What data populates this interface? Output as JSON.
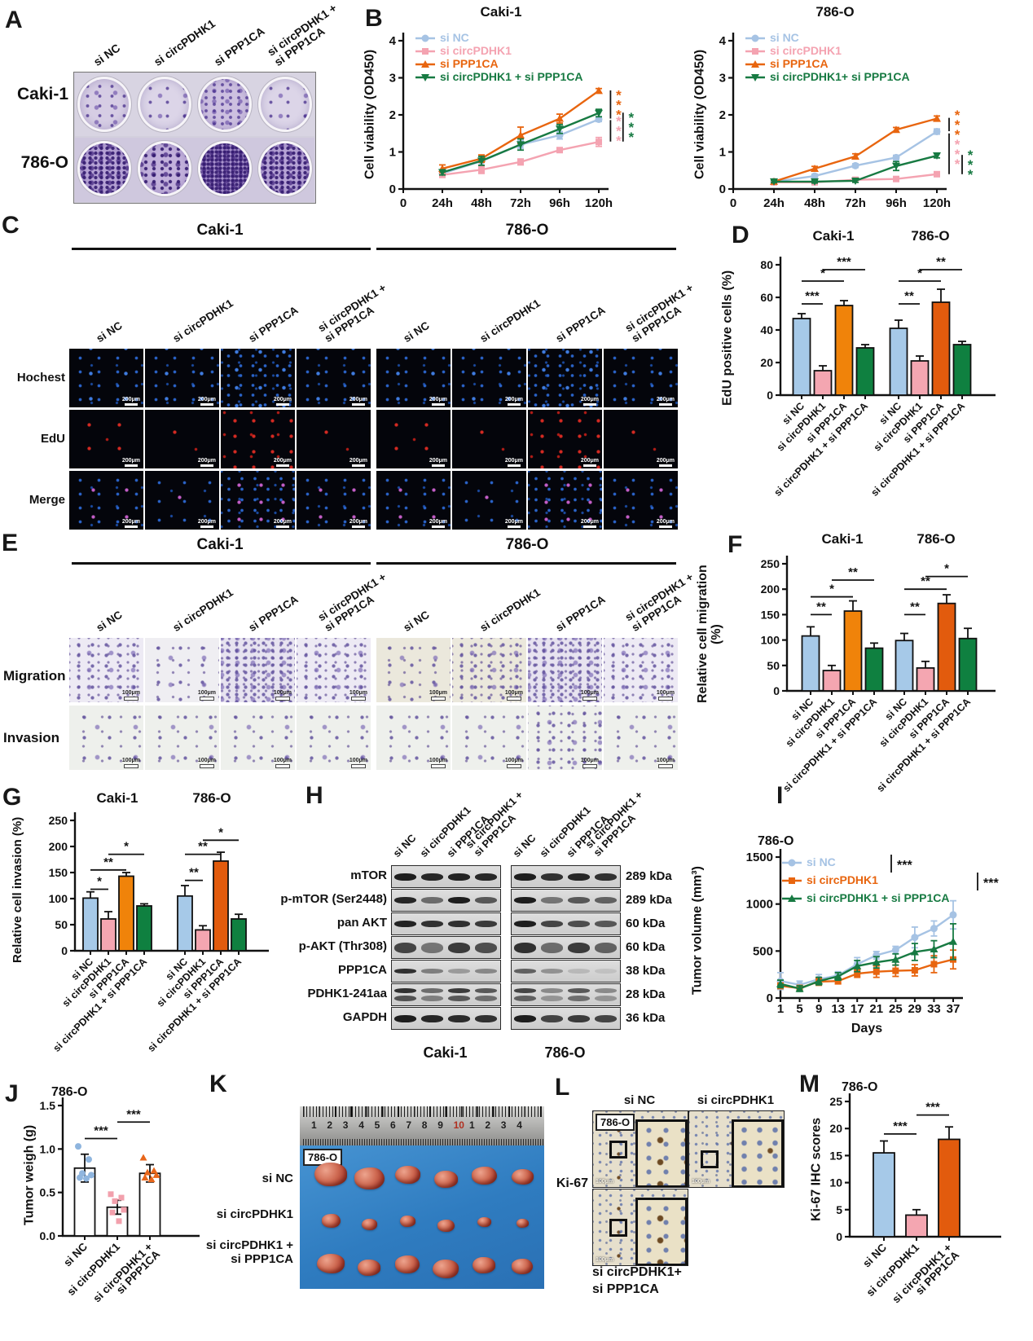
{
  "letters": {
    "A": "A",
    "B": "B",
    "C": "C",
    "D": "D",
    "E": "E",
    "F": "F",
    "G": "G",
    "H": "H",
    "I": "I",
    "J": "J",
    "K": "K",
    "L": "L",
    "M": "M"
  },
  "panelA": {
    "col_labels": [
      "si NC",
      "si circPDHK1",
      "si PPP1CA",
      "si circPDHK1 +\nsi PPP1CA"
    ],
    "row_labels": [
      "Caki-1",
      "786-O"
    ]
  },
  "panelC": {
    "group_titles": [
      "Caki-1",
      "786-O"
    ],
    "col_labels": [
      "si NC",
      "si circPDHK1",
      "si PPP1CA",
      "si circPDHK1 +\nsi PPP1CA"
    ],
    "row_labels": [
      "Hochest",
      "EdU",
      "Merge"
    ],
    "scale_bar": "200μm"
  },
  "panelE": {
    "group_titles": [
      "Caki-1",
      "786-O"
    ],
    "col_labels": [
      "si NC",
      "si circPDHK1",
      "si PPP1CA",
      "si circPDHK1 +\nsi PPP1CA"
    ],
    "row_labels": [
      "Migration",
      "Invasion"
    ],
    "scale_bar": "100μm"
  },
  "panelH": {
    "lane_labels": [
      "si NC",
      "si circPDHK1",
      "si PPP1CA",
      "si circPDHK1 +\nsi PPP1CA"
    ],
    "rows": [
      {
        "label": "mTOR",
        "kda": "289 kDa",
        "bands": [
          0.95,
          0.9,
          0.92,
          0.9,
          0.95,
          0.85,
          0.9,
          0.85
        ],
        "h": 9
      },
      {
        "label": "p-mTOR (Ser2448)",
        "kda": "289 kDa",
        "bands": [
          0.9,
          0.55,
          0.95,
          0.65,
          0.95,
          0.5,
          0.65,
          0.6
        ],
        "h": 8
      },
      {
        "label": "pan AKT",
        "kda": "60 kDa",
        "bands": [
          0.92,
          0.85,
          0.85,
          0.8,
          0.95,
          0.75,
          0.7,
          0.65
        ],
        "h": 8
      },
      {
        "label": "p-AKT (Thr308)",
        "kda": "60 kDa",
        "bands": [
          0.75,
          0.5,
          0.8,
          0.7,
          0.85,
          0.55,
          0.8,
          0.6
        ],
        "h": 13
      },
      {
        "label": "PPP1CA",
        "kda": "38 kDa",
        "bands": [
          0.85,
          0.45,
          0.3,
          0.4,
          0.6,
          0.35,
          0.15,
          0.1
        ],
        "h": 6
      },
      {
        "label": "PDHK1-241aa",
        "kda": "28 kDa",
        "bands": [
          0.85,
          0.55,
          0.8,
          0.65,
          0.75,
          0.4,
          0.65,
          0.4
        ],
        "h": 7,
        "double": true
      },
      {
        "label": "GAPDH",
        "kda": "36 kDa",
        "bands": [
          0.95,
          0.9,
          0.88,
          0.85,
          0.95,
          0.75,
          0.8,
          0.75
        ],
        "h": 9
      }
    ],
    "bottom_labels": [
      "Caki-1",
      "786-O"
    ]
  },
  "panelK": {
    "corner": "786-O",
    "ruler_numbers": [
      "1",
      "2",
      "3",
      "4",
      "5",
      "6",
      "7",
      "8",
      "9",
      "10",
      "1",
      "2",
      "3",
      "4"
    ],
    "row_labels": [
      "si NC",
      "si circPDHK1",
      "si circPDHK1 +\nsi PPP1CA"
    ]
  },
  "panelL": {
    "corner": "786-O",
    "col_labels": [
      "si NC",
      "si circPDHK1"
    ],
    "marker_label": "Ki-67",
    "bottom_label": "si circPDHK1+\nsi PPP1CA",
    "scale_bar": "100μm"
  },
  "chart_data": [
    {
      "id": "b_caki",
      "type": "line",
      "title": "Caki-1",
      "ylabel": "Cell viability (OD450)",
      "xticklabels": [
        "0",
        "24h",
        "48h",
        "72h",
        "96h",
        "120h"
      ],
      "ylim": [
        0,
        4
      ],
      "yticks": [
        0,
        1,
        2,
        3,
        4
      ],
      "series": [
        {
          "name": "si NC",
          "color": "#A6C3E4",
          "marker": "circle",
          "values": [
            0.42,
            0.75,
            1.2,
            1.45,
            1.88
          ],
          "errors": [
            0.06,
            0.12,
            0.1,
            0.1,
            0.06
          ]
        },
        {
          "name": "si circPDHK1",
          "color": "#F4A3B1",
          "marker": "square",
          "values": [
            0.38,
            0.52,
            0.73,
            1.05,
            1.27
          ],
          "errors": [
            0.05,
            0.1,
            0.08,
            0.05,
            0.12
          ]
        },
        {
          "name": "si PPP1CA",
          "color": "#E8650F",
          "marker": "triangle",
          "values": [
            0.55,
            0.82,
            1.45,
            1.9,
            2.65
          ],
          "errors": [
            0.1,
            0.1,
            0.22,
            0.12,
            0.06
          ]
        },
        {
          "name": "si circPDHK1 + si PPP1CA",
          "color": "#177A42",
          "marker": "triangle-down",
          "values": [
            0.45,
            0.76,
            1.2,
            1.62,
            2.05
          ],
          "errors": [
            0.07,
            0.12,
            0.15,
            0.12,
            0.1
          ]
        }
      ],
      "sig": [
        {
          "xi": 5.3,
          "y1": 1.9,
          "y2": 2.66,
          "text": "***",
          "color": "#E8650F"
        },
        {
          "xi": 5.3,
          "y1": 1.28,
          "y2": 1.86,
          "text": "***",
          "color": "#F4A3B1"
        },
        {
          "xi": 5.62,
          "y1": 1.28,
          "y2": 2.06,
          "text": "***",
          "color": "#177A42"
        }
      ]
    },
    {
      "id": "b_786",
      "type": "line",
      "title": "786-O",
      "ylabel": "Cell viability (OD450)",
      "xticklabels": [
        "0",
        "24h",
        "48h",
        "72h",
        "96h",
        "120h"
      ],
      "ylim": [
        0,
        4
      ],
      "yticks": [
        0,
        1,
        2,
        3,
        4
      ],
      "series": [
        {
          "name": "si NC",
          "color": "#A6C3E4",
          "marker": "circle",
          "values": [
            0.2,
            0.35,
            0.63,
            0.85,
            1.55
          ],
          "errors": [
            0.04,
            0.05,
            0.05,
            0.06,
            0.07
          ]
        },
        {
          "name": "si circPDHK1",
          "color": "#F4A3B1",
          "marker": "square",
          "values": [
            0.18,
            0.18,
            0.25,
            0.27,
            0.4
          ],
          "errors": [
            0.03,
            0.03,
            0.04,
            0.04,
            0.05
          ]
        },
        {
          "name": "si PPP1CA",
          "color": "#E8650F",
          "marker": "triangle",
          "values": [
            0.2,
            0.55,
            0.88,
            1.6,
            1.9
          ],
          "errors": [
            0.04,
            0.06,
            0.07,
            0.06,
            0.07
          ]
        },
        {
          "name": "si circPDHK1+ si PPP1CA",
          "color": "#177A42",
          "marker": "triangle-down",
          "values": [
            0.2,
            0.2,
            0.22,
            0.62,
            0.9
          ],
          "errors": [
            0.03,
            0.04,
            0.04,
            0.12,
            0.06
          ]
        }
      ],
      "sig": [
        {
          "xi": 5.3,
          "y1": 1.56,
          "y2": 1.92,
          "text": "***",
          "color": "#E8650F"
        },
        {
          "xi": 5.3,
          "y1": 0.4,
          "y2": 1.5,
          "text": "***",
          "color": "#F4A3B1"
        },
        {
          "xi": 5.62,
          "y1": 0.4,
          "y2": 0.92,
          "text": "***",
          "color": "#177A42"
        }
      ]
    },
    {
      "id": "d",
      "type": "bar",
      "ylabel": "EdU positive cells (%)",
      "ylim": [
        0,
        80
      ],
      "yticks": [
        0,
        20,
        40,
        60,
        80
      ],
      "categories": [
        "si NC",
        "si circPDHK1",
        "si PPP1CA",
        "si circPDHK1 + si PPP1CA"
      ],
      "groups": [
        {
          "title": "Caki-1",
          "values": [
            47,
            15,
            55,
            29
          ],
          "errors": [
            3,
            3,
            3,
            2
          ],
          "colors": [
            "#A6C9E8",
            "#F4A6B1",
            "#F0830A",
            "#0F8040"
          ]
        },
        {
          "title": "786-O",
          "values": [
            41,
            21,
            57,
            31
          ],
          "errors": [
            5,
            3,
            8,
            2
          ],
          "colors": [
            "#A6C9E8",
            "#F4A6B1",
            "#E25B0D",
            "#0F8040"
          ]
        }
      ],
      "sig": [
        {
          "a": 0,
          "b": 1,
          "y": 56,
          "text": "***"
        },
        {
          "a": 0,
          "b": 2,
          "y": 70,
          "text": "*"
        },
        {
          "a": 1,
          "b": 3,
          "y": 77,
          "text": "***"
        },
        {
          "a": 4,
          "b": 5,
          "y": 56,
          "text": "**"
        },
        {
          "a": 4,
          "b": 6,
          "y": 70,
          "text": "*"
        },
        {
          "a": 5,
          "b": 7,
          "y": 77,
          "text": "**"
        }
      ]
    },
    {
      "id": "f",
      "type": "bar",
      "ylabel": "Relative cell migration (%)",
      "ylim": [
        0,
        250
      ],
      "yticks": [
        0,
        50,
        100,
        150,
        200,
        250
      ],
      "categories": [
        "si NC",
        "si circPDHK1",
        "si PPP1CA",
        "si circPDHK1 + si PPP1CA"
      ],
      "groups": [
        {
          "title": "Caki-1",
          "values": [
            108,
            40,
            157,
            84
          ],
          "errors": [
            18,
            10,
            20,
            10
          ],
          "colors": [
            "#A6C9E8",
            "#F4A6B1",
            "#F0830A",
            "#0F8040"
          ]
        },
        {
          "title": "786-O",
          "values": [
            99,
            45,
            172,
            103
          ],
          "errors": [
            14,
            13,
            17,
            20
          ],
          "colors": [
            "#A6C9E8",
            "#F4A6B1",
            "#E25B0D",
            "#0F8040"
          ]
        }
      ],
      "sig": [
        {
          "a": 0,
          "b": 1,
          "y": 150,
          "text": "**"
        },
        {
          "a": 0,
          "b": 2,
          "y": 185,
          "text": "*"
        },
        {
          "a": 1,
          "b": 3,
          "y": 218,
          "text": "**"
        },
        {
          "a": 4,
          "b": 5,
          "y": 150,
          "text": "**"
        },
        {
          "a": 4,
          "b": 6,
          "y": 200,
          "text": "**"
        },
        {
          "a": 5,
          "b": 7,
          "y": 225,
          "text": "*"
        }
      ]
    },
    {
      "id": "g",
      "type": "bar",
      "ylabel": "Relative cell invasion (%)",
      "ylim": [
        0,
        250
      ],
      "yticks": [
        0,
        50,
        100,
        150,
        200,
        250
      ],
      "categories": [
        "si NC",
        "si circPDHK1",
        "si PPP1CA",
        "si circPDHK1 + si PPP1CA"
      ],
      "groups": [
        {
          "title": "Caki-1",
          "values": [
            101,
            61,
            143,
            86
          ],
          "errors": [
            12,
            14,
            7,
            4
          ],
          "colors": [
            "#A6C9E8",
            "#F4A6B1",
            "#F0830A",
            "#0F8040"
          ]
        },
        {
          "title": "786-O",
          "values": [
            105,
            40,
            172,
            61
          ],
          "errors": [
            20,
            8,
            17,
            9
          ],
          "colors": [
            "#A6C9E8",
            "#F4A6B1",
            "#E25B0D",
            "#0F8040"
          ]
        }
      ],
      "sig": [
        {
          "a": 0,
          "b": 1,
          "y": 118,
          "text": "*"
        },
        {
          "a": 0,
          "b": 2,
          "y": 155,
          "text": "**"
        },
        {
          "a": 1,
          "b": 3,
          "y": 185,
          "text": "*"
        },
        {
          "a": 4,
          "b": 5,
          "y": 135,
          "text": "**"
        },
        {
          "a": 4,
          "b": 6,
          "y": 185,
          "text": "**"
        },
        {
          "a": 5,
          "b": 7,
          "y": 212,
          "text": "*"
        }
      ]
    },
    {
      "id": "i",
      "type": "line",
      "title": "786-O",
      "ylabel": "Tumor volume (mm³)",
      "xlabel": "Days",
      "xticklabels": [
        "1",
        "5",
        "9",
        "13",
        "17",
        "21",
        "25",
        "29",
        "33",
        "37"
      ],
      "ylim": [
        0,
        1500
      ],
      "yticks": [
        0,
        500,
        1000,
        1500
      ],
      "series": [
        {
          "name": "si NC",
          "color": "#A6C3E4",
          "marker": "circle",
          "values": [
            180,
            140,
            200,
            240,
            360,
            455,
            510,
            645,
            740,
            885
          ],
          "errors": [
            90,
            40,
            50,
            40,
            70,
            40,
            40,
            110,
            80,
            150
          ]
        },
        {
          "name": "si circPDHK1",
          "color": "#E8650F",
          "marker": "square",
          "values": [
            130,
            105,
            175,
            180,
            260,
            280,
            290,
            295,
            360,
            410
          ],
          "errors": [
            30,
            30,
            40,
            30,
            40,
            60,
            60,
            60,
            90,
            100
          ]
        },
        {
          "name": "si circPDHK1 + si PPP1CA",
          "color": "#177A42",
          "marker": "triangle",
          "values": [
            150,
            100,
            180,
            230,
            340,
            380,
            410,
            490,
            520,
            600
          ],
          "errors": [
            40,
            30,
            40,
            40,
            60,
            60,
            60,
            90,
            90,
            190
          ]
        }
      ],
      "sig": [
        {
          "text": "***"
        },
        {
          "text": "***"
        }
      ]
    },
    {
      "id": "j",
      "type": "bar",
      "title": "786-O",
      "ylabel": "Tumor weigh (g)",
      "ylim": [
        0,
        1.5
      ],
      "yticks": [
        "0.0",
        "0.5",
        "1.0",
        "1.5"
      ],
      "categories": [
        "si NC",
        "si circPDHK1",
        "si circPDHK1 +\nsi PPP1CA"
      ],
      "groups": [
        {
          "values": [
            0.78,
            0.33,
            0.72
          ],
          "errors": [
            0.16,
            0.08,
            0.1
          ],
          "colors": [
            "#ffffff",
            "#ffffff",
            "#ffffff"
          ]
        }
      ],
      "points": [
        {
          "shape": "circle",
          "color": "#8FB5DE",
          "values": [
            1.03,
            0.88,
            0.72,
            0.7,
            0.67,
            0.66
          ]
        },
        {
          "shape": "square",
          "color": "#F2A0AC",
          "values": [
            0.48,
            0.44,
            0.4,
            0.3,
            0.27,
            0.17
          ]
        },
        {
          "shape": "triangle",
          "color": "#E8661A",
          "values": [
            0.9,
            0.75,
            0.73,
            0.7,
            0.67,
            0.65
          ]
        }
      ],
      "sig": [
        {
          "a": 0,
          "b": 1,
          "y": 1.12,
          "text": "***"
        },
        {
          "a": 1,
          "b": 2,
          "y": 1.31,
          "text": "***"
        }
      ]
    },
    {
      "id": "m",
      "type": "bar",
      "title": "786-O",
      "ylabel": "Ki-67 IHC scores",
      "ylim": [
        0,
        25
      ],
      "yticks": [
        0,
        5,
        10,
        15,
        20,
        25
      ],
      "categories": [
        "si NC",
        "si circPDHK1",
        "si circPDHK1 +\nsi PPP1CA"
      ],
      "groups": [
        {
          "values": [
            15.5,
            4,
            18
          ],
          "errors": [
            2.2,
            1,
            2.3
          ],
          "colors": [
            "#A6C9E8",
            "#F4A6B1",
            "#E25B0D"
          ]
        }
      ],
      "sig": [
        {
          "a": 0,
          "b": 1,
          "y": 19,
          "text": "***"
        },
        {
          "a": 1,
          "b": 2,
          "y": 22.5,
          "text": "***"
        }
      ]
    }
  ]
}
